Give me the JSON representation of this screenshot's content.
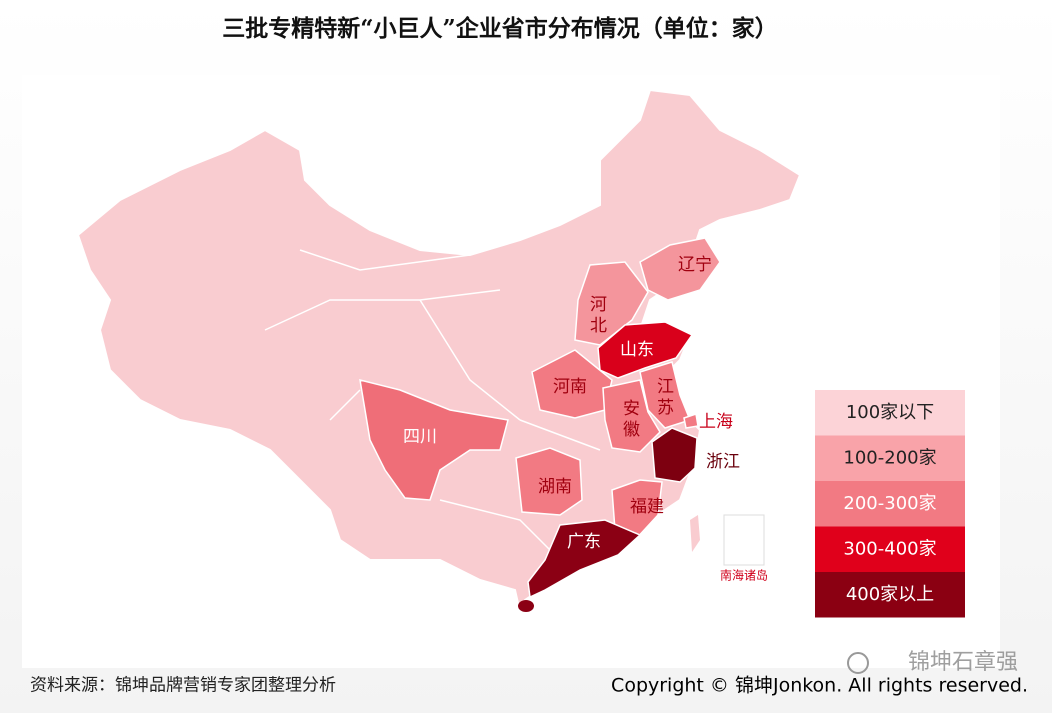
{
  "title": "三批专精特新“小巨人”企业省市分布情况（单位：家）",
  "map": {
    "base_color": "#f9ccd0",
    "provinces": [
      {
        "name": "辽宁",
        "color": "#f4959c"
      },
      {
        "name": "河北",
        "color": "#f4959c"
      },
      {
        "name": "山东",
        "color": "#d9001b"
      },
      {
        "name": "河南",
        "color": "#f27a83"
      },
      {
        "name": "江苏",
        "color": "#f27a83"
      },
      {
        "name": "安徽",
        "color": "#f27a83"
      },
      {
        "name": "上海",
        "color": "#f27a83"
      },
      {
        "name": "浙江",
        "color": "#7d0010"
      },
      {
        "name": "四川",
        "color": "#ef6e78"
      },
      {
        "name": "湖南",
        "color": "#f27a83"
      },
      {
        "name": "福建",
        "color": "#f27a83"
      },
      {
        "name": "广东",
        "color": "#8b0014"
      }
    ],
    "inset_label": "南海诸岛"
  },
  "legend": {
    "items": [
      {
        "label": "100家以下",
        "color": "#fcd3d7"
      },
      {
        "label": "100-200家",
        "color": "#f9a3a9"
      },
      {
        "label": "200-300家",
        "color": "#f27a83"
      },
      {
        "label": "300-400家",
        "color": "#e0001b"
      },
      {
        "label": "400家以上",
        "color": "#8b0012"
      }
    ]
  },
  "source": "资料来源：锦坤品牌营销专家团整理分析",
  "copyright": "Copyright © 锦坤Jonkon. All rights reserved.",
  "watermark": "锦坤石章强"
}
